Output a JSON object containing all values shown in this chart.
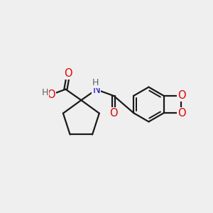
{
  "bg_color": "#efefef",
  "line_color": "#1a1a1a",
  "bond_width": 1.6,
  "atom_colors": {
    "O": "#e00000",
    "N": "#2020cc",
    "C": "#1a1a1a",
    "H": "#606060"
  },
  "font_size": 9.5,
  "fig_size": [
    3.0,
    3.0
  ],
  "dpi": 100
}
